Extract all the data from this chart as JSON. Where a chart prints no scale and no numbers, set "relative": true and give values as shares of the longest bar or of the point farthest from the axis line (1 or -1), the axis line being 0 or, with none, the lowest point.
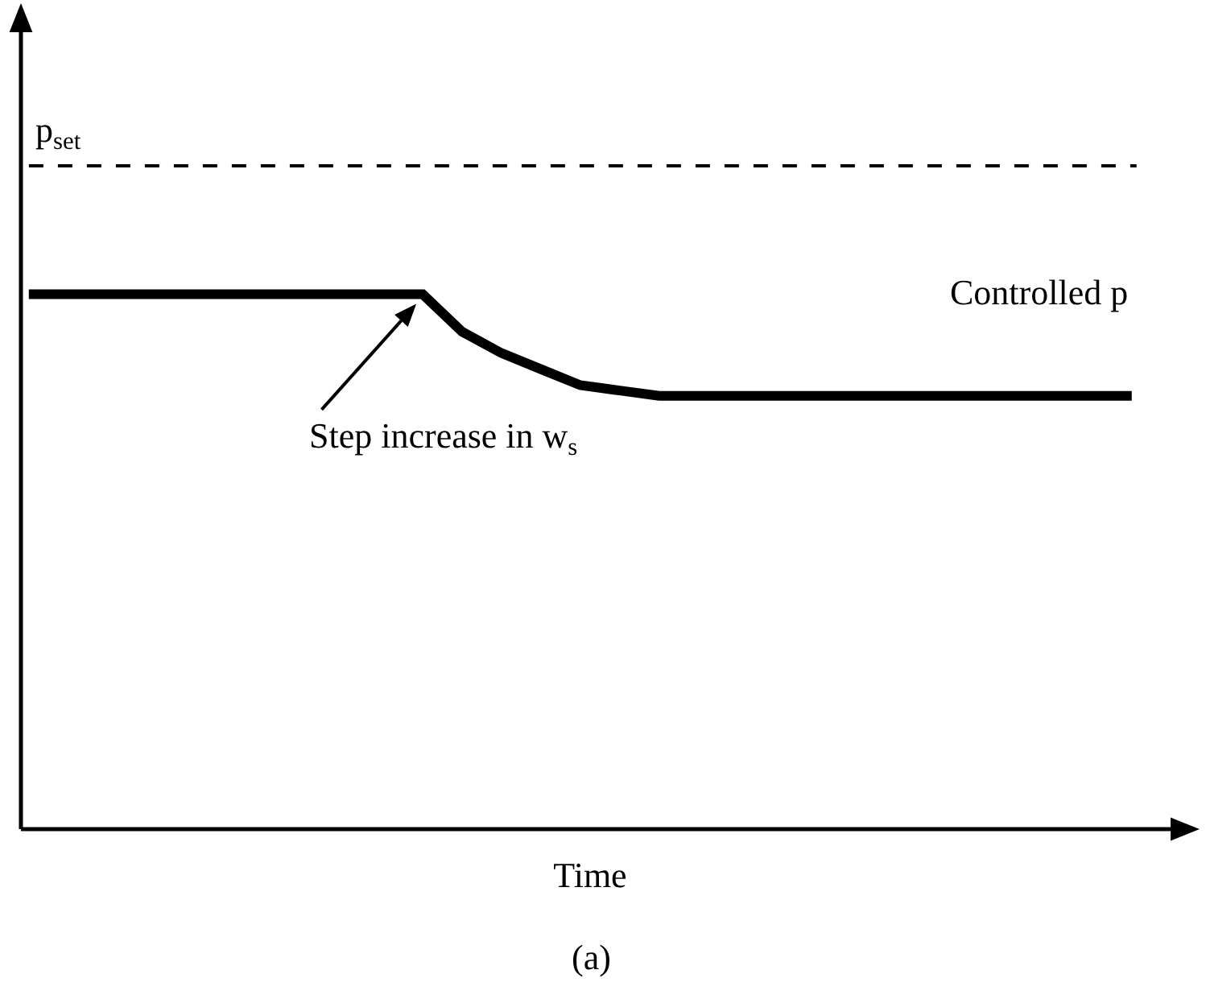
{
  "chart_data": {
    "type": "line",
    "relative": true,
    "xlabel": "Time",
    "categories": [
      null,
      null,
      null,
      null,
      null,
      null,
      null,
      null,
      null,
      null,
      null,
      null,
      null,
      null,
      null,
      null,
      null,
      null,
      null,
      null,
      null,
      null,
      null,
      null,
      null,
      null,
      null,
      null,
      null
    ],
    "series": [
      {
        "name": "Controlled p",
        "color": "#000000",
        "values": [
          1,
          1,
          1,
          1,
          1,
          1,
          1,
          1,
          1,
          1,
          1,
          0.93,
          0.89,
          0.86,
          0.83,
          0.82,
          0.81,
          0.81,
          0.81,
          0.81,
          0.81,
          0.81,
          0.81,
          0.81,
          0.81,
          0.81,
          0.81,
          0.81,
          0.81
        ]
      }
    ],
    "ref_lines": [
      {
        "axis": "y",
        "value": 1.24,
        "label": "p$_{set}$",
        "color": "#000000",
        "line_style": "dashed"
      }
    ],
    "annotations": [
      "Step increase in w$_{s}$",
      "(a)"
    ],
    "grid": false,
    "legend": false,
    "marker": "none",
    "line_style": "solid"
  }
}
